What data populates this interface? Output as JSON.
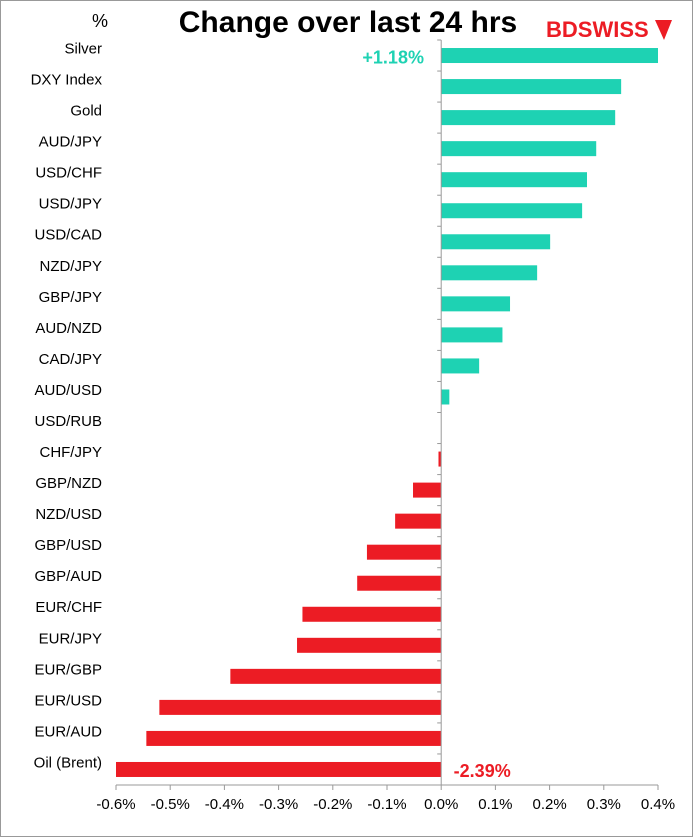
{
  "chart_data": {
    "type": "hbar",
    "title": "Change over last 24 hrs",
    "unit": "%",
    "logo": "BDSWISS",
    "categories": [
      "Silver",
      "DXY Index",
      "Gold",
      "AUD/JPY",
      "USD/CHF",
      "USD/JPY",
      "USD/CAD",
      "NZD/JPY",
      "GBP/JPY",
      "AUD/NZD",
      "CAD/JPY",
      "AUD/USD",
      "USD/RUB",
      "CHF/JPY",
      "GBP/NZD",
      "NZD/USD",
      "GBP/USD",
      "GBP/AUD",
      "EUR/CHF",
      "EUR/JPY",
      "EUR/GBP",
      "EUR/USD",
      "EUR/AUD",
      "Oil (Brent)"
    ],
    "values": [
      1.18,
      0.332,
      0.321,
      0.286,
      0.269,
      0.26,
      0.201,
      0.177,
      0.127,
      0.113,
      0.07,
      0.015,
      0,
      -0.005,
      -0.052,
      -0.085,
      -0.137,
      -0.155,
      -0.256,
      -0.266,
      -0.389,
      -0.52,
      -0.544,
      -2.39
    ],
    "value_labels": [
      "+1.18%",
      null,
      null,
      null,
      null,
      null,
      null,
      null,
      null,
      null,
      null,
      null,
      null,
      null,
      null,
      null,
      null,
      null,
      null,
      null,
      null,
      null,
      null,
      "-2.39%"
    ],
    "positive_color": "#1ed2b3",
    "negative_color": "#ec1c24",
    "xlim": [
      -0.6,
      0.4
    ],
    "xticks": [
      {
        "value": -0.6,
        "label": "-0.6%"
      },
      {
        "value": -0.5,
        "label": "-0.5%"
      },
      {
        "value": -0.4,
        "label": "-0.4%"
      },
      {
        "value": -0.3,
        "label": "-0.3%"
      },
      {
        "value": -0.2,
        "label": "-0.2%"
      },
      {
        "value": -0.1,
        "label": "-0.1%"
      },
      {
        "value": 0,
        "label": "0.0%"
      },
      {
        "value": 0.1,
        "label": "0.1%"
      },
      {
        "value": 0.2,
        "label": "0.2%"
      },
      {
        "value": 0.3,
        "label": "0.3%"
      },
      {
        "value": 0.4,
        "label": "0.4%"
      }
    ],
    "grid": false
  }
}
